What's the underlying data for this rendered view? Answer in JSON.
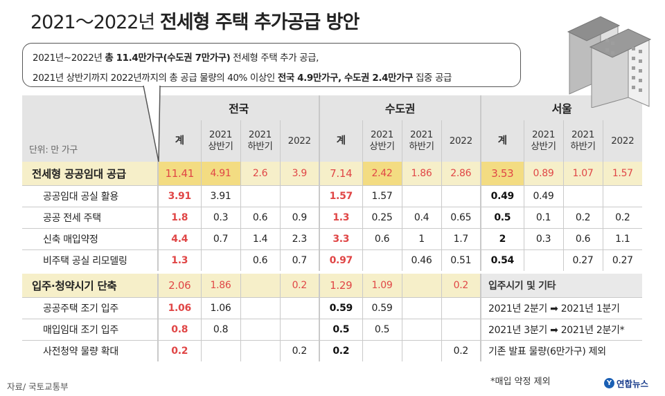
{
  "title": {
    "prefix": "2021～2022년",
    "main": "전세형 주택 추가공급 방안"
  },
  "callout": {
    "l1_a": "2021년∼2022년 ",
    "l1_b": "총 11.4만가구(수도권 7만가구)",
    "l1_c": " 전세형 주택 추가 공급,",
    "l2_a": "2021년 상반기까지 2022년까지의 총 공급 물량의 40% 이상인 ",
    "l2_b": "전국 4.9만가구, 수도권 2.4만가구",
    "l2_c": " 집중 공급"
  },
  "table": {
    "unit": "단위: 만 가구",
    "regions": [
      "전국",
      "수도권",
      "서울"
    ],
    "sub_headers": [
      "계",
      "2021\n상반기",
      "2021\n하반기",
      "2022"
    ],
    "sections": [
      {
        "label": "전세형 공공임대 공급",
        "values": [
          "11.41",
          "4.91",
          "2.6",
          "3.9",
          "7.14",
          "2.42",
          "1.86",
          "2.86",
          "3.53",
          "0.89",
          "1.07",
          "1.57"
        ],
        "rows": [
          {
            "label": "공공임대 공실 활용",
            "values": [
              "3.91",
              "3.91",
              "",
              "",
              "1.57",
              "1.57",
              "",
              "",
              "0.49",
              "0.49",
              "",
              ""
            ]
          },
          {
            "label": "공공 전세 주택",
            "values": [
              "1.8",
              "0.3",
              "0.6",
              "0.9",
              "1.3",
              "0.25",
              "0.4",
              "0.65",
              "0.5",
              "0.1",
              "0.2",
              "0.2"
            ]
          },
          {
            "label": "신축 매입약정",
            "values": [
              "4.4",
              "0.7",
              "1.4",
              "2.3",
              "3.3",
              "0.6",
              "1",
              "1.7",
              "2",
              "0.3",
              "0.6",
              "1.1"
            ]
          },
          {
            "label": "비주택 공실 리모델링",
            "values": [
              "1.3",
              "",
              "0.6",
              "0.7",
              "0.97",
              "",
              "0.46",
              "0.51",
              "0.54",
              "",
              "0.27",
              "0.27"
            ]
          }
        ]
      },
      {
        "label": "입주·청약시기 단축",
        "values": [
          "2.06",
          "1.86",
          "",
          "0.2",
          "1.29",
          "1.09",
          "",
          "0.2"
        ],
        "note_header": "입주시기 및 기타",
        "rows": [
          {
            "label": "공공주택 조기 입주",
            "values": [
              "1.06",
              "1.06",
              "",
              "",
              "0.59",
              "0.59",
              "",
              ""
            ],
            "note": "2021년 2분기 ➡ 2021년 1분기"
          },
          {
            "label": "매입임대 조기 입주",
            "values": [
              "0.8",
              "0.8",
              "",
              "",
              "0.5",
              "0.5",
              "",
              ""
            ],
            "note": "2021년 3분기 ➡ 2021년 2분기*"
          },
          {
            "label": "사전청약 물량 확대",
            "values": [
              "0.2",
              "",
              "",
              "0.2",
              "0.2",
              "",
              "",
              "0.2"
            ],
            "note": "기존 발표 물량(6만가구) 제외"
          }
        ]
      }
    ]
  },
  "chart_data": {
    "type": "table",
    "title": "2021～2022년 전세형 주택 추가공급 방안",
    "unit": "단위: 만 가구",
    "columns": [
      "전국 계",
      "전국 2021 상반기",
      "전국 2021 하반기",
      "전국 2022",
      "수도권 계",
      "수도권 2021 상반기",
      "수도권 2021 하반기",
      "수도권 2022",
      "서울 계",
      "서울 2021 상반기",
      "서울 2021 하반기",
      "서울 2022"
    ],
    "rows": [
      {
        "label": "전세형 공공임대 공급",
        "values": [
          11.41,
          4.91,
          2.6,
          3.9,
          7.14,
          2.42,
          1.86,
          2.86,
          3.53,
          0.89,
          1.07,
          1.57
        ]
      },
      {
        "label": "공공임대 공실 활용",
        "values": [
          3.91,
          3.91,
          null,
          null,
          1.57,
          1.57,
          null,
          null,
          0.49,
          0.49,
          null,
          null
        ]
      },
      {
        "label": "공공 전세 주택",
        "values": [
          1.8,
          0.3,
          0.6,
          0.9,
          1.3,
          0.25,
          0.4,
          0.65,
          0.5,
          0.1,
          0.2,
          0.2
        ]
      },
      {
        "label": "신축 매입약정",
        "values": [
          4.4,
          0.7,
          1.4,
          2.3,
          3.3,
          0.6,
          1,
          1.7,
          2,
          0.3,
          0.6,
          1.1
        ]
      },
      {
        "label": "비주택 공실 리모델링",
        "values": [
          1.3,
          null,
          0.6,
          0.7,
          0.97,
          null,
          0.46,
          0.51,
          0.54,
          null,
          0.27,
          0.27
        ]
      },
      {
        "label": "입주·청약시기 단축",
        "values": [
          2.06,
          1.86,
          null,
          0.2,
          1.29,
          1.09,
          null,
          0.2
        ]
      },
      {
        "label": "공공주택 조기 입주",
        "values": [
          1.06,
          1.06,
          null,
          null,
          0.59,
          0.59,
          null,
          null
        ]
      },
      {
        "label": "매입임대 조기 입주",
        "values": [
          0.8,
          0.8,
          null,
          null,
          0.5,
          0.5,
          null,
          null
        ]
      },
      {
        "label": "사전청약 물량 확대",
        "values": [
          0.2,
          null,
          null,
          0.2,
          0.2,
          null,
          null,
          0.2
        ]
      }
    ]
  },
  "colors": {
    "highlight_row": "#f6efc9",
    "highlight_cell": "#f3dc82",
    "total_red": "#e04646",
    "header_gray": "#e4e4e4"
  },
  "footnote": "*매입 약정 제외",
  "source": "자료/ 국토교통부",
  "logo": {
    "mark": "Y",
    "text": "연합뉴스"
  }
}
